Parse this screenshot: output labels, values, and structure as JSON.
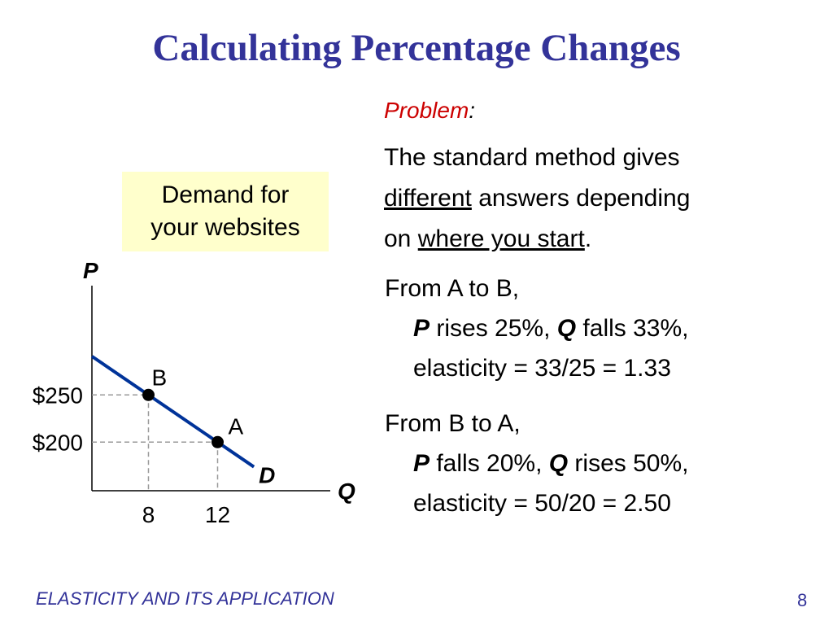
{
  "slide": {
    "title": "Calculating Percentage Changes",
    "footer": "ELASTICITY AND ITS APPLICATION",
    "page_number": "8"
  },
  "note_box": {
    "line1": "Demand for",
    "line2": "your websites"
  },
  "problem": {
    "heading": "Problem",
    "colon": ":",
    "line1": "The standard method gives",
    "line2_underlined": "different",
    "line2_rest": " answers depending",
    "line3_start": "on ",
    "line3_underlined": "where you start",
    "line3_end": "."
  },
  "calc_a_to_b": {
    "heading": "From A to B,",
    "p_symbol": "P",
    "p_text": " rises 25%, ",
    "q_symbol": "Q",
    "q_text": " falls 33%,",
    "elasticity": "elasticity = 33/25 = 1.33"
  },
  "calc_b_to_a": {
    "heading": "From B to A,",
    "p_symbol": "P",
    "p_text": " falls 20%, ",
    "q_symbol": "Q",
    "q_text": " rises 50%,",
    "elasticity": "elasticity = 50/20 = 2.50"
  },
  "colors": {
    "title": "#333399",
    "demand_line": "#003399",
    "problem_heading": "#cc0000",
    "note_box_bg": "#ffffcc",
    "guide_lines": "#999999"
  },
  "chart_data": {
    "type": "line",
    "title": "",
    "xlabel": "Q",
    "ylabel": "P",
    "curve_label": "D",
    "series": [
      {
        "name": "D",
        "x": [
          8,
          12
        ],
        "y": [
          250,
          200
        ]
      }
    ],
    "points": [
      {
        "label": "B",
        "x": 8,
        "y": 250
      },
      {
        "label": "A",
        "x": 12,
        "y": 200
      }
    ],
    "x_ticks": [
      {
        "value": 8,
        "label": "8"
      },
      {
        "value": 12,
        "label": "12"
      }
    ],
    "y_ticks": [
      {
        "value": 250,
        "label": "$250"
      },
      {
        "value": 200,
        "label": "$200"
      }
    ],
    "xlim": [
      4.73,
      12.0
    ],
    "ylim": [
      148.5,
      250.0
    ],
    "grid": false,
    "legend": "none"
  }
}
